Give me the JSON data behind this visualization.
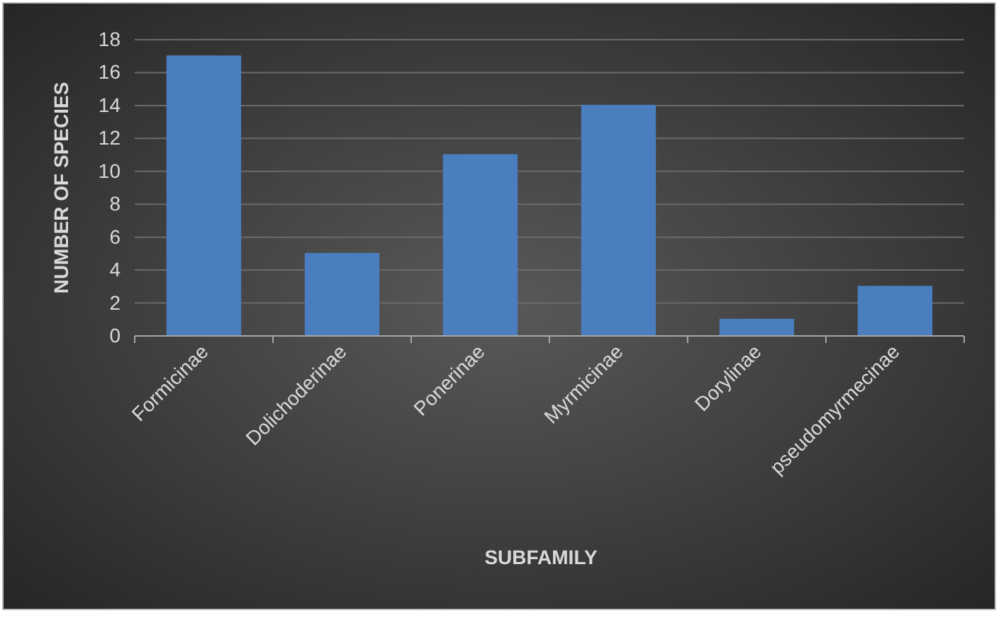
{
  "chart_data": {
    "type": "bar",
    "xlabel": "SUBFAMILY",
    "ylabel": "NUMBER OF SPECIES",
    "categories": [
      "Formicinae",
      "Dolichoderinae",
      "Ponerinae",
      "Myrmicinae",
      "Dorylinae",
      "pseudomyrmecinae"
    ],
    "values": [
      17,
      5,
      11,
      14,
      1,
      3
    ],
    "color": "#4a7ebf",
    "ylim": [
      0,
      18
    ],
    "yticks": [
      0,
      2,
      4,
      6,
      8,
      10,
      12,
      14,
      16,
      18
    ],
    "grid": "y"
  }
}
